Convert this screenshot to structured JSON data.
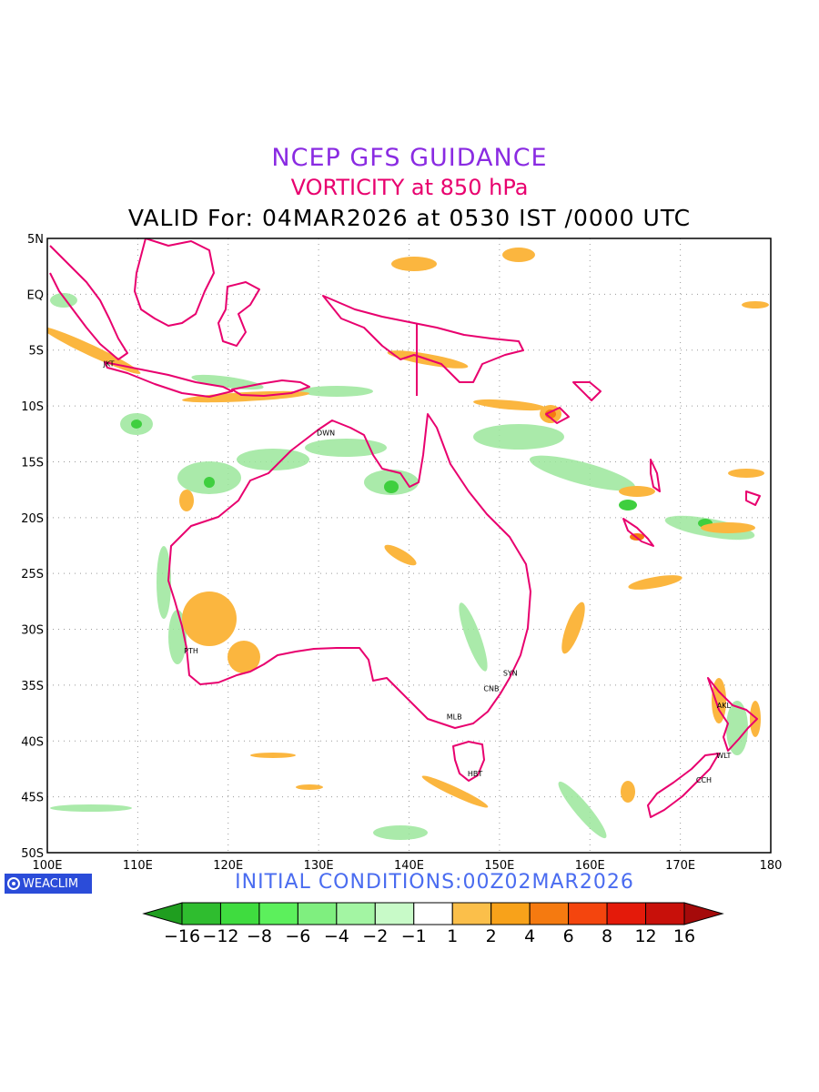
{
  "header": {
    "line1": "NCEP GFS GUIDANCE",
    "line2": "VORTICITY at 850 hPa",
    "line3": "VALID For: 04MAR2026 at 0530 IST /0000 UTC"
  },
  "map": {
    "lon_labels": [
      "100E",
      "110E",
      "120E",
      "130E",
      "140E",
      "150E",
      "160E",
      "170E",
      "180"
    ],
    "lat_labels": [
      "5N",
      "EQ",
      "5S",
      "10S",
      "15S",
      "20S",
      "25S",
      "30S",
      "35S",
      "40S",
      "45S",
      "50S"
    ],
    "lon_range": [
      100,
      180
    ],
    "lat_range": [
      5,
      -50
    ],
    "coastline_color": "#e8006e",
    "cities": [
      {
        "name": "JKT",
        "lon": 106.8,
        "lat": -6.2
      },
      {
        "name": "DWN",
        "lon": 130.8,
        "lat": -12.4
      },
      {
        "name": "PTH",
        "lon": 115.9,
        "lat": -31.9
      },
      {
        "name": "SYN",
        "lon": 151.2,
        "lat": -33.9
      },
      {
        "name": "CNB",
        "lon": 149.1,
        "lat": -35.3
      },
      {
        "name": "MLB",
        "lon": 145.0,
        "lat": -37.8
      },
      {
        "name": "HBT",
        "lon": 147.3,
        "lat": -42.9
      },
      {
        "name": "AKL",
        "lon": 174.8,
        "lat": -36.8
      },
      {
        "name": "WLT",
        "lon": 174.8,
        "lat": -41.3
      },
      {
        "name": "CCH",
        "lon": 172.6,
        "lat": -43.5
      }
    ]
  },
  "footer": {
    "logo_text": "WEACLIM",
    "initial_conditions": "INITIAL CONDITIONS:00Z02MAR2026"
  },
  "colorbar": {
    "labels": [
      "−16",
      "−12",
      "−8",
      "−6",
      "−4",
      "−2",
      "−1",
      "1",
      "2",
      "4",
      "6",
      "8",
      "12",
      "16"
    ],
    "colors": [
      "#1f9e1f",
      "#2fbd2f",
      "#3fdc3f",
      "#5cf05c",
      "#7fef7f",
      "#a3f5a3",
      "#c8fac8",
      "#ffffff",
      "#fbbf4a",
      "#f8a21a",
      "#f57a10",
      "#f4450e",
      "#e41a0a",
      "#c8100a",
      "#a50a0a"
    ]
  }
}
